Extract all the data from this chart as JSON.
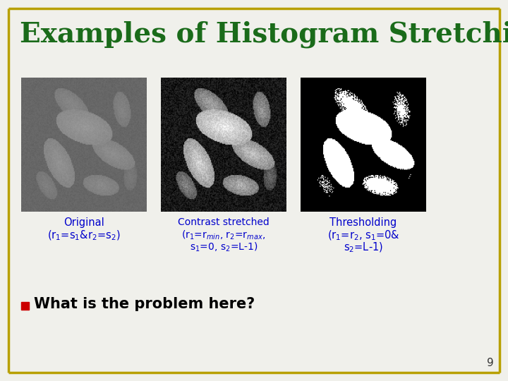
{
  "title": "Examples of Histogram Stretching",
  "title_color": "#1a6b1a",
  "title_fontsize": 28,
  "background_color": "#f0f0eb",
  "border_color": "#b8a000",
  "label_color": "#0000cc",
  "bullet_text": "What is the problem here?",
  "bullet_color": "#cc0000",
  "page_number": "9",
  "label1_line1": "Original",
  "label1_line2": "(r$_1$=s$_1$&r$_2$=s$_2$)",
  "label2_line1": "Contrast stretched",
  "label2_line2": "(r$_1$=r$_{min}$, r$_2$=r$_{max}$,",
  "label2_line3": "s$_1$=0, s$_2$=L-1)",
  "label3_line1": "Thresholding",
  "label3_line2": "(r$_1$=r$_2$, s$_1$=0&",
  "label3_line3": "s$_2$=L-1)"
}
